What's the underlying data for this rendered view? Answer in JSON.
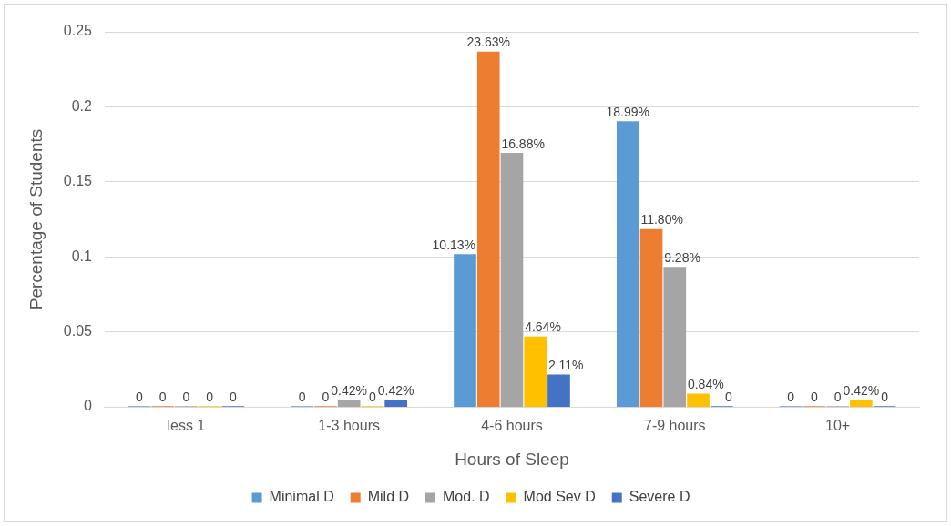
{
  "chart_data": {
    "type": "bar",
    "xlabel": "Hours of Sleep",
    "ylabel": "Percentage of Students",
    "categories": [
      "less 1",
      "1-3 hours",
      "4-6 hours",
      "7-9 hours",
      "10+"
    ],
    "series": [
      {
        "name": "Minimal D",
        "color": "#5b9bd5",
        "values": [
          0,
          0,
          0.1013,
          0.1899,
          0
        ],
        "value_labels": [
          "0",
          "0",
          "10.13%",
          "18.99%",
          "0"
        ]
      },
      {
        "name": "Mild D",
        "color": "#ed7d31",
        "values": [
          0,
          0,
          0.2363,
          0.118,
          0
        ],
        "value_labels": [
          "0",
          "0",
          "23.63%",
          "11.80%",
          "0"
        ]
      },
      {
        "name": "Mod. D",
        "color": "#a5a5a5",
        "values": [
          0,
          0.0042,
          0.1688,
          0.0928,
          0
        ],
        "value_labels": [
          "0",
          "0.42%",
          "16.88%",
          "9.28%",
          "0"
        ]
      },
      {
        "name": "Mod Sev D",
        "color": "#ffc000",
        "values": [
          0,
          0,
          0.0464,
          0.0084,
          0.0042
        ],
        "value_labels": [
          "0",
          "0",
          "4.64%",
          "0.84%",
          "0.42%"
        ]
      },
      {
        "name": "Severe D",
        "color": "#4472c4",
        "values": [
          0,
          0.0042,
          0.0211,
          0,
          0
        ],
        "value_labels": [
          "0",
          "0.42%",
          "2.11%",
          "0",
          "0"
        ]
      }
    ],
    "ylim": [
      0,
      0.25
    ],
    "yticks": [
      0,
      0.05,
      0.1,
      0.15,
      0.2,
      0.25
    ],
    "grid": "y",
    "legend": "bottom"
  }
}
